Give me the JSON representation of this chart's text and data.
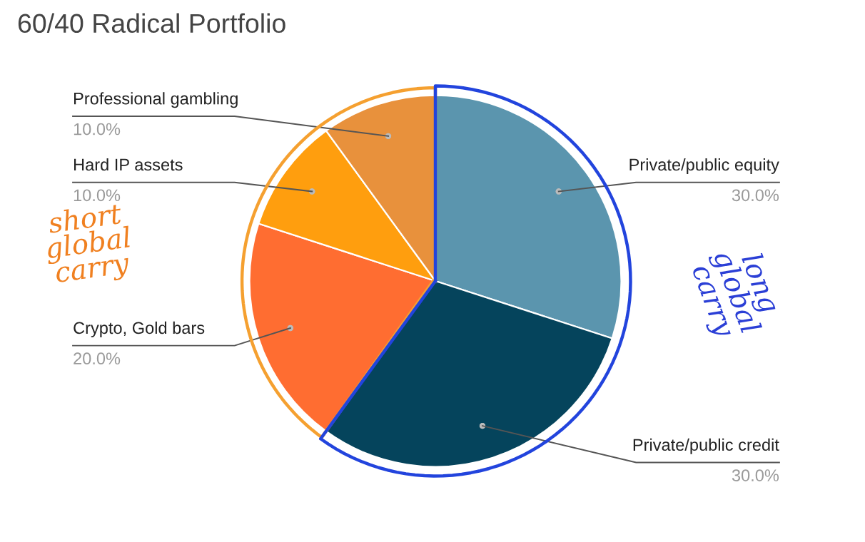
{
  "chart_data": {
    "type": "pie",
    "title": "60/40 Radical Portfolio",
    "categories": [
      "Private/public equity",
      "Private/public credit",
      "Crypto, Gold bars",
      "Hard IP assets",
      "Professional gambling"
    ],
    "values": [
      30,
      30,
      20,
      10,
      10
    ],
    "value_labels": [
      "30.0%",
      "30.0%",
      "20.0%",
      "10.0%",
      "10.0%"
    ],
    "colors": [
      "#5b95ae",
      "#05445c",
      "#ff6d31",
      "#ff9e0e",
      "#e8913c"
    ],
    "annotations": [
      "short\nglobal\ncarry",
      "long\nglobal\ncarry"
    ],
    "legend": false
  }
}
